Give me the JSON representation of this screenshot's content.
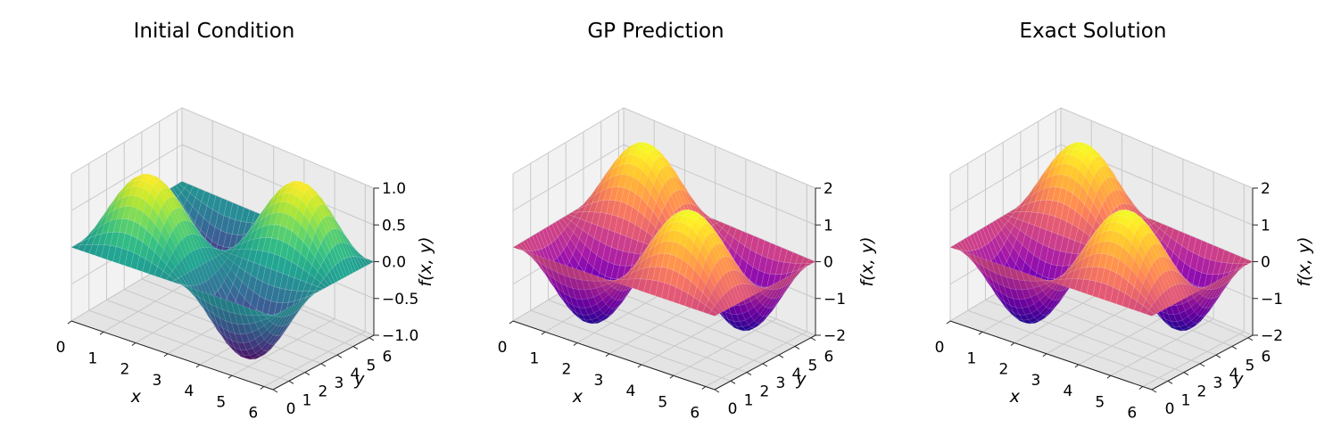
{
  "chart_data": [
    {
      "type": "surface3d",
      "title": "Initial Condition",
      "xlabel": "x",
      "ylabel": "y",
      "zlabel": "f(x, y)",
      "xlim": [
        0,
        6.2832
      ],
      "ylim": [
        0,
        6.2832
      ],
      "zlim": [
        -1.0,
        1.0
      ],
      "xticks": [
        "0",
        "1",
        "2",
        "3",
        "4",
        "5",
        "6"
      ],
      "yticks": [
        "0",
        "1",
        "2",
        "3",
        "4",
        "5",
        "6"
      ],
      "zticks": [
        "−1.0",
        "−0.5",
        "0.0",
        "0.5",
        "1.0"
      ],
      "zvalues": [
        -1.0,
        -0.5,
        0.0,
        0.5,
        1.0
      ],
      "function": "sin(x)*sin(y)",
      "colormap": "viridis",
      "grid": true
    },
    {
      "type": "surface3d",
      "title": "GP Prediction",
      "xlabel": "x",
      "ylabel": "y",
      "zlabel": "f(x, y)",
      "xlim": [
        0,
        6.2832
      ],
      "ylim": [
        0,
        6.2832
      ],
      "zlim": [
        -2,
        2
      ],
      "xticks": [
        "0",
        "1",
        "2",
        "3",
        "4",
        "5",
        "6"
      ],
      "yticks": [
        "0",
        "1",
        "2",
        "3",
        "4",
        "5",
        "6"
      ],
      "zticks": [
        "−2",
        "−1",
        "0",
        "1",
        "2"
      ],
      "zvalues": [
        -2,
        -1,
        0,
        1,
        2
      ],
      "function": "-2*sin(x)*sin(y)",
      "colormap": "plasma",
      "grid": true
    },
    {
      "type": "surface3d",
      "title": "Exact Solution",
      "xlabel": "x",
      "ylabel": "y",
      "zlabel": "f(x, y)",
      "xlim": [
        0,
        6.2832
      ],
      "ylim": [
        0,
        6.2832
      ],
      "zlim": [
        -2,
        2
      ],
      "xticks": [
        "0",
        "1",
        "2",
        "3",
        "4",
        "5",
        "6"
      ],
      "yticks": [
        "0",
        "1",
        "2",
        "3",
        "4",
        "5",
        "6"
      ],
      "zticks": [
        "−2",
        "−1",
        "0",
        "1",
        "2"
      ],
      "zvalues": [
        -2,
        -1,
        0,
        1,
        2
      ],
      "function": "-2*sin(x)*sin(y)",
      "colormap": "plasma",
      "grid": true
    }
  ]
}
